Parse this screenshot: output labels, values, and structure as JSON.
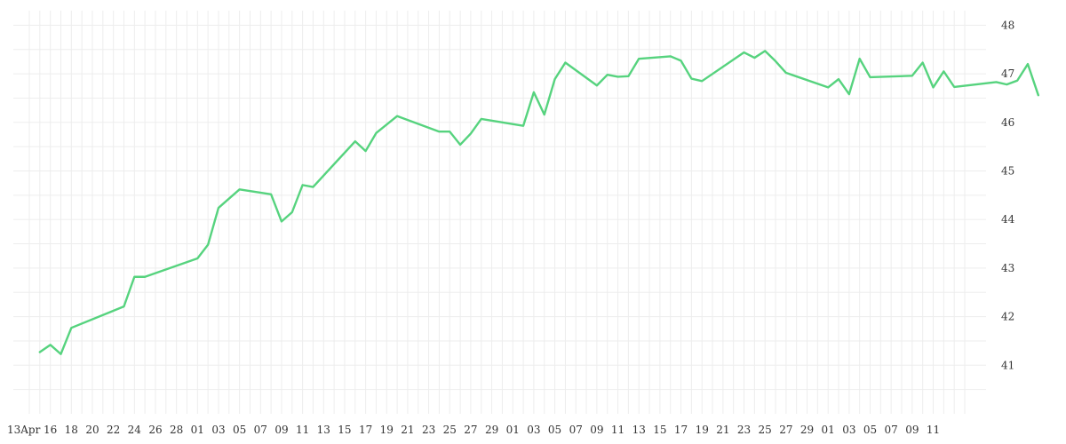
{
  "chart_data": {
    "type": "line",
    "title": "",
    "xlabel": "",
    "ylabel": "",
    "ylim": [
      40,
      48.3
    ],
    "y_ticks": [
      41,
      42,
      43,
      44,
      45,
      46,
      47,
      48
    ],
    "y_axis_position": "right",
    "grid": true,
    "legend": "none",
    "x_tick_labels": [
      "13Apr",
      "16",
      "18",
      "20",
      "22",
      "24",
      "26",
      "28",
      "01",
      "03",
      "05",
      "07",
      "09",
      "11",
      "13",
      "15",
      "17",
      "19",
      "21",
      "23",
      "25",
      "27",
      "29",
      "01",
      "03",
      "05",
      "07",
      "09",
      "11",
      "13",
      "15",
      "17",
      "19",
      "21",
      "23",
      "25",
      "27",
      "29",
      "01",
      "03",
      "05",
      "07",
      "09",
      "11"
    ],
    "colors": {
      "line": "#56d37e",
      "grid": "#ededed",
      "text": "#333333"
    },
    "series": [
      {
        "points": [
          {
            "x": "2024-04-14",
            "y": 41.27
          },
          {
            "x": "2024-04-15",
            "y": 41.42
          },
          {
            "x": "2024-04-16",
            "y": 41.23
          },
          {
            "x": "2024-04-17",
            "y": 41.77
          },
          {
            "x": "2024-04-22",
            "y": 42.21
          },
          {
            "x": "2024-04-23",
            "y": 42.82
          },
          {
            "x": "2024-04-24",
            "y": 42.82
          },
          {
            "x": "2024-04-29",
            "y": 43.2
          },
          {
            "x": "2024-04-30",
            "y": 43.48
          },
          {
            "x": "2024-05-01",
            "y": 44.24
          },
          {
            "x": "2024-05-03",
            "y": 44.62
          },
          {
            "x": "2024-05-06",
            "y": 44.52
          },
          {
            "x": "2024-05-07",
            "y": 43.96
          },
          {
            "x": "2024-05-08",
            "y": 44.15
          },
          {
            "x": "2024-05-09",
            "y": 44.71
          },
          {
            "x": "2024-05-10",
            "y": 44.67
          },
          {
            "x": "2024-05-14",
            "y": 45.61
          },
          {
            "x": "2024-05-15",
            "y": 45.41
          },
          {
            "x": "2024-05-16",
            "y": 45.78
          },
          {
            "x": "2024-05-18",
            "y": 46.13
          },
          {
            "x": "2024-05-22",
            "y": 45.81
          },
          {
            "x": "2024-05-23",
            "y": 45.81
          },
          {
            "x": "2024-05-24",
            "y": 45.54
          },
          {
            "x": "2024-05-25",
            "y": 45.77
          },
          {
            "x": "2024-05-26",
            "y": 46.07
          },
          {
            "x": "2024-05-30",
            "y": 45.93
          },
          {
            "x": "2024-05-31",
            "y": 46.62
          },
          {
            "x": "2024-06-01",
            "y": 46.16
          },
          {
            "x": "2024-06-02",
            "y": 46.89
          },
          {
            "x": "2024-06-03",
            "y": 47.23
          },
          {
            "x": "2024-06-06",
            "y": 46.76
          },
          {
            "x": "2024-06-07",
            "y": 46.98
          },
          {
            "x": "2024-06-08",
            "y": 46.94
          },
          {
            "x": "2024-06-09",
            "y": 46.95
          },
          {
            "x": "2024-06-10",
            "y": 47.31
          },
          {
            "x": "2024-06-13",
            "y": 47.36
          },
          {
            "x": "2024-06-14",
            "y": 47.27
          },
          {
            "x": "2024-06-15",
            "y": 46.9
          },
          {
            "x": "2024-06-16",
            "y": 46.85
          },
          {
            "x": "2024-06-20",
            "y": 47.44
          },
          {
            "x": "2024-06-21",
            "y": 47.33
          },
          {
            "x": "2024-06-22",
            "y": 47.47
          },
          {
            "x": "2024-06-23",
            "y": 47.26
          },
          {
            "x": "2024-06-24",
            "y": 47.02
          },
          {
            "x": "2024-06-28",
            "y": 46.72
          },
          {
            "x": "2024-06-29",
            "y": 46.89
          },
          {
            "x": "2024-06-30",
            "y": 46.58
          },
          {
            "x": "2024-07-01",
            "y": 47.31
          },
          {
            "x": "2024-07-02",
            "y": 46.93
          },
          {
            "x": "2024-07-06",
            "y": 46.96
          },
          {
            "x": "2024-07-07",
            "y": 47.23
          },
          {
            "x": "2024-07-08",
            "y": 46.72
          },
          {
            "x": "2024-07-09",
            "y": 47.05
          },
          {
            "x": "2024-07-10",
            "y": 46.73
          },
          {
            "x": "2024-07-14",
            "y": 46.83
          },
          {
            "x": "2024-07-15",
            "y": 46.78
          },
          {
            "x": "2024-07-16",
            "y": 46.86
          },
          {
            "x": "2024-07-17",
            "y": 47.2
          },
          {
            "x": "2024-07-18",
            "y": 46.56
          }
        ]
      }
    ]
  }
}
